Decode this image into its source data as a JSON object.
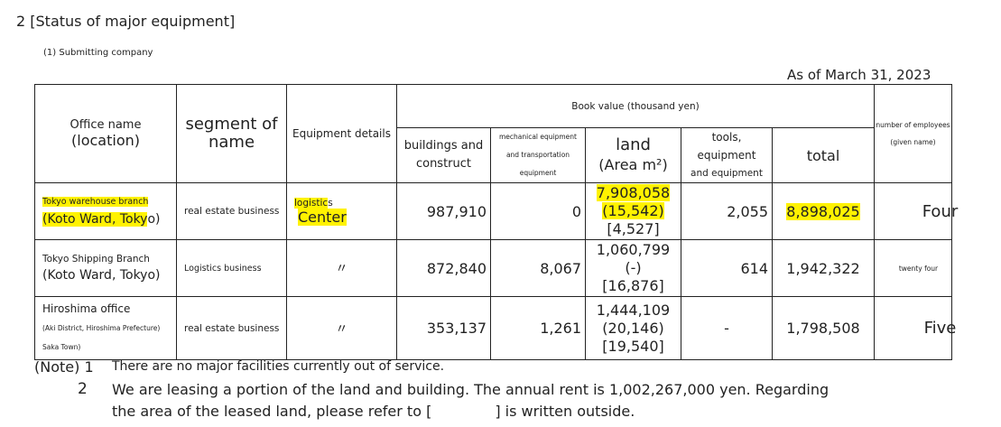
{
  "header": {
    "title": "2 [Status of major equipment]",
    "subtitle": "(1) Submitting company",
    "as_of": "As of March 31, 2023"
  },
  "table": {
    "headers": {
      "office_name": "Office name",
      "office_location": "(location)",
      "segment_line1": "segment of",
      "segment_line2": "name",
      "equipment_details": "Equipment details",
      "book_value": "Book value (thousand yen)",
      "buildings_line1": "buildings and",
      "buildings_line2": "construct",
      "machinery_line1": "mechanical equipment",
      "machinery_line2": "and transportation equipment",
      "land_line1": "land",
      "land_line2": "(Area m²)",
      "tools_line1": "tools, equipment",
      "tools_line2": "and equipment",
      "total": "total",
      "employees_line1": "number of employees",
      "employees_line2": "(given name)"
    },
    "rows": [
      {
        "office_line1": "Tokyo warehouse branch",
        "office_line2_a": "(Koto Ward, Toky",
        "office_line2_b": "o)",
        "segment": "real estate business",
        "equipment_line1_a": "logistic",
        "equipment_line1_b": "s",
        "equipment_line2": "Center",
        "buildings": "987,910",
        "machinery": "0",
        "land_value": "7,908,058",
        "land_area": "(15,542)",
        "land_leased": "[4,527]",
        "tools": "2,055",
        "total": "8,898,025",
        "employees": "Four"
      },
      {
        "office_line1": "Tokyo Shipping Branch",
        "office_line2": "(Koto Ward, Tokyo)",
        "segment": "Logistics business",
        "equipment": "〃",
        "buildings": "872,840",
        "machinery": "8,067",
        "land_value": "1,060,799",
        "land_area": "(-)",
        "land_leased": "[16,876]",
        "tools": "614",
        "total": "1,942,322",
        "employees": "twenty four"
      },
      {
        "office_line1": "Hiroshima office",
        "office_line2": "(Aki District, Hiroshima Prefecture)",
        "office_line3": "Saka Town)",
        "segment": "real estate business",
        "equipment": "〃",
        "buildings": "353,137",
        "machinery": "1,261",
        "land_value": "1,444,109",
        "land_area": "(20,146)",
        "land_leased": "[19,540]",
        "tools": "-",
        "total": "1,798,508",
        "employees": "Five"
      }
    ]
  },
  "notes": {
    "label_1": "(Note) 1",
    "text_1": "There are no major facilities currently out of service.",
    "label_2": "2",
    "text_2_line1": "We are leasing a portion of the land and building. The annual rent is 1,002,267,000 yen. Regarding",
    "text_2_line2_a": "the area of   the leased land, please refer to [",
    "text_2_line2_b": "] is written outside."
  },
  "colors": {
    "highlight": "#fff200",
    "border": "#222222"
  }
}
